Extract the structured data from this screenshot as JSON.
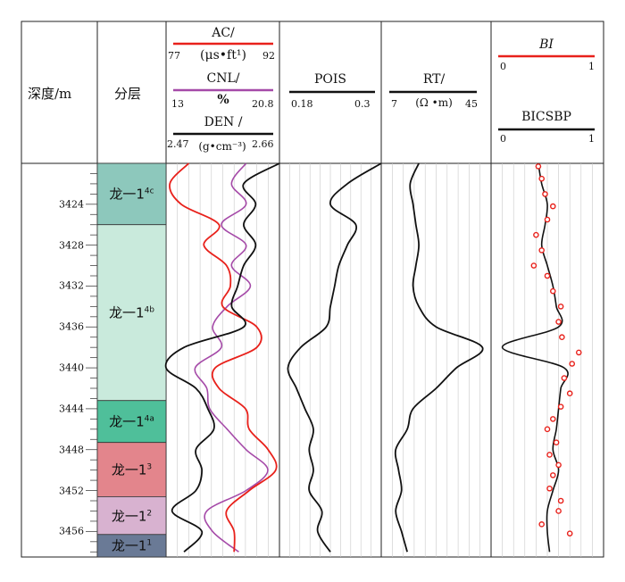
{
  "header": {
    "depth_label": "深度/m",
    "zone_label": "分层"
  },
  "tracks": {
    "ac": {
      "name": "AC/",
      "unit": "(μs•ft¹)",
      "min": "77",
      "max": "92",
      "color": "#e8211b"
    },
    "cnl": {
      "name": "CNL/",
      "unit": "%",
      "min": "13",
      "max": "20.8",
      "color": "#a54aa8"
    },
    "den": {
      "name": "DEN /",
      "unit": "(g•cm⁻³)",
      "min": "2.47",
      "max": "2.66",
      "color": "#111111"
    },
    "pois": {
      "name": "POIS",
      "min": "0.18",
      "max": "0.3",
      "color": "#111111"
    },
    "rt": {
      "name": "RT/",
      "unit": "(Ω •m)",
      "min": "7",
      "max": "45",
      "color": "#111111"
    },
    "bi": {
      "name": "BI",
      "min": "0",
      "max": "1",
      "color": "#e8211b"
    },
    "bicsbp": {
      "name": "BICSBP",
      "min": "0",
      "max": "1",
      "color": "#111111"
    }
  },
  "zones": [
    {
      "label": "龙一1",
      "sup": "4c",
      "top": 3420.0,
      "bottom": 3426.0,
      "color": "#8dc8bc"
    },
    {
      "label": "龙一1",
      "sup": "4b",
      "top": 3426.0,
      "bottom": 3443.2,
      "color": "#c9eadc"
    },
    {
      "label": "龙一1",
      "sup": "4a",
      "top": 3443.2,
      "bottom": 3447.3,
      "color": "#4fbf9a"
    },
    {
      "label": "龙一1",
      "sup": "3",
      "top": 3447.3,
      "bottom": 3452.6,
      "color": "#e3858c"
    },
    {
      "label": "龙一1",
      "sup": "2",
      "top": 3452.6,
      "bottom": 3456.3,
      "color": "#d8b2d0"
    },
    {
      "label": "龙一1",
      "sup": "1",
      "top": 3456.3,
      "bottom": 3458.5,
      "color": "#6a7a96"
    }
  ],
  "chart_data": {
    "type": "line",
    "y_axis": {
      "label": "深度/m",
      "range": [
        3420.0,
        3458.5
      ],
      "ticks": [
        3424,
        3428,
        3432,
        3436,
        3440,
        3444,
        3448,
        3452,
        3456
      ]
    },
    "depth": [
      3420,
      3422,
      3424,
      3426,
      3428,
      3430,
      3432,
      3434,
      3436,
      3438,
      3440,
      3442,
      3444,
      3446,
      3448,
      3450,
      3452,
      3454,
      3456,
      3458
    ],
    "series": [
      {
        "name": "AC",
        "min": 77,
        "max": 92,
        "values": [
          80,
          77.5,
          79,
          84,
          82,
          85,
          85.5,
          84.5,
          89,
          89,
          83.5,
          84,
          87.5,
          88,
          90.5,
          91.5,
          88,
          85,
          86,
          86
        ]
      },
      {
        "name": "CNL",
        "min": 13,
        "max": 20.8,
        "values": [
          18.5,
          17.5,
          18.5,
          16.8,
          18.5,
          17.5,
          18.8,
          17.2,
          16.2,
          16.8,
          15,
          15.8,
          16,
          17.2,
          18.5,
          20,
          18.5,
          15.8,
          16.2,
          18
        ]
      },
      {
        "name": "DEN",
        "min": 2.47,
        "max": 2.66,
        "values": [
          2.66,
          2.6,
          2.62,
          2.6,
          2.62,
          2.6,
          2.59,
          2.58,
          2.6,
          2.5,
          2.47,
          2.52,
          2.54,
          2.55,
          2.52,
          2.53,
          2.52,
          2.48,
          2.53,
          2.5
        ]
      },
      {
        "name": "POIS",
        "min": 0.18,
        "max": 0.3,
        "values": [
          0.3,
          0.26,
          0.24,
          0.27,
          0.26,
          0.25,
          0.245,
          0.24,
          0.235,
          0.205,
          0.19,
          0.2,
          0.21,
          0.22,
          0.215,
          0.22,
          0.215,
          0.23,
          0.225,
          0.24
        ]
      },
      {
        "name": "RT",
        "min": 7,
        "max": 45,
        "values": [
          20,
          17,
          18,
          19,
          20,
          19,
          18,
          20,
          26,
          42,
          33,
          26,
          18,
          16,
          12,
          13,
          14,
          12,
          14,
          16
        ]
      },
      {
        "name": "BICSBP",
        "min": 0,
        "max": 1,
        "values": [
          0.42,
          0.45,
          0.5,
          0.48,
          0.45,
          0.5,
          0.55,
          0.58,
          0.6,
          0.1,
          0.65,
          0.62,
          0.6,
          0.58,
          0.55,
          0.6,
          0.55,
          0.5,
          0.5,
          0.52
        ]
      },
      {
        "name": "BI",
        "min": 0,
        "max": 1,
        "points": [
          [
            3420.3,
            0.42
          ],
          [
            3421.5,
            0.45
          ],
          [
            3423,
            0.48
          ],
          [
            3424.2,
            0.55
          ],
          [
            3425.5,
            0.5
          ],
          [
            3427,
            0.4
          ],
          [
            3428.5,
            0.45
          ],
          [
            3430,
            0.38
          ],
          [
            3431,
            0.5
          ],
          [
            3432.5,
            0.55
          ],
          [
            3434,
            0.62
          ],
          [
            3435.5,
            0.6
          ],
          [
            3437,
            0.63
          ],
          [
            3438.5,
            0.78
          ],
          [
            3439.6,
            0.72
          ],
          [
            3441,
            0.65
          ],
          [
            3442.5,
            0.7
          ],
          [
            3443.8,
            0.62
          ],
          [
            3445,
            0.55
          ],
          [
            3446,
            0.5
          ],
          [
            3447.3,
            0.58
          ],
          [
            3448.5,
            0.52
          ],
          [
            3449.5,
            0.6
          ],
          [
            3450.5,
            0.55
          ],
          [
            3451.8,
            0.52
          ],
          [
            3453,
            0.62
          ],
          [
            3454,
            0.6
          ],
          [
            3455.3,
            0.45
          ],
          [
            3456.2,
            0.7
          ]
        ]
      }
    ]
  }
}
